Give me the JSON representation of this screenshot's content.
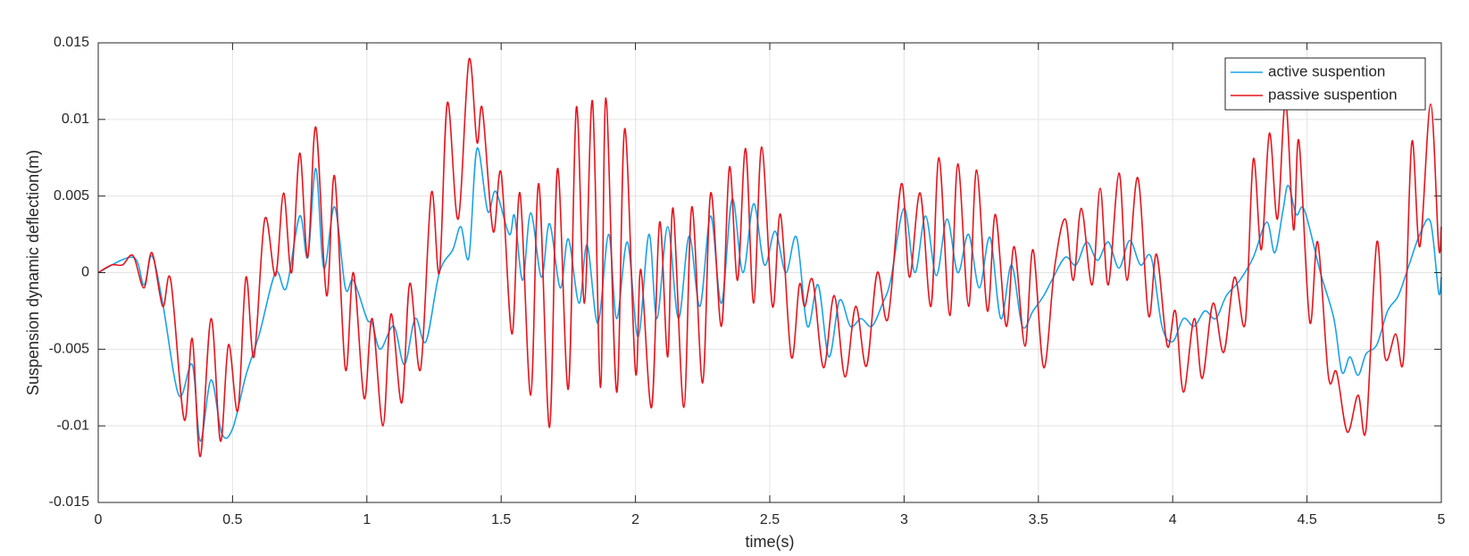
{
  "chart_data": {
    "type": "line",
    "xlabel": "time(s)",
    "ylabel": "Suspension dynamic deflection(m)",
    "xlim": [
      0,
      5
    ],
    "xticks": [
      0,
      0.5,
      1,
      1.5,
      2,
      2.5,
      3,
      3.5,
      4,
      4.5,
      5
    ],
    "ylim": [
      -0.015,
      0.015
    ],
    "yticks": [
      -0.015,
      -0.01,
      -0.005,
      0,
      0.005,
      0.01,
      0.015
    ],
    "grid": true,
    "legend": "top-right",
    "series": [
      {
        "name": "active suspention",
        "color": "#1aa3e8",
        "x": [
          0,
          0.13,
          0.17,
          0.2,
          0.24,
          0.3,
          0.35,
          0.38,
          0.42,
          0.46,
          0.5,
          0.55,
          0.6,
          0.66,
          0.7,
          0.75,
          0.78,
          0.81,
          0.84,
          0.88,
          0.92,
          0.95,
          1.0,
          1.02,
          1.05,
          1.1,
          1.14,
          1.18,
          1.22,
          1.27,
          1.32,
          1.35,
          1.38,
          1.41,
          1.45,
          1.48,
          1.53,
          1.55,
          1.58,
          1.61,
          1.65,
          1.68,
          1.72,
          1.75,
          1.79,
          1.82,
          1.86,
          1.9,
          1.93,
          1.97,
          2.01,
          2.05,
          2.08,
          2.12,
          2.16,
          2.2,
          2.24,
          2.28,
          2.32,
          2.36,
          2.4,
          2.44,
          2.48,
          2.52,
          2.56,
          2.6,
          2.64,
          2.68,
          2.72,
          2.76,
          2.8,
          2.84,
          2.88,
          2.92,
          2.95,
          3.0,
          3.04,
          3.08,
          3.12,
          3.16,
          3.2,
          3.24,
          3.28,
          3.32,
          3.36,
          3.4,
          3.44,
          3.48,
          3.52,
          3.55,
          3.6,
          3.64,
          3.68,
          3.72,
          3.76,
          3.8,
          3.84,
          3.88,
          3.92,
          3.96,
          4.0,
          4.04,
          4.08,
          4.12,
          4.16,
          4.2,
          4.25,
          4.3,
          4.35,
          4.38,
          4.41,
          4.43,
          4.46,
          4.49,
          4.55,
          4.6,
          4.63,
          4.66,
          4.69,
          4.72,
          4.76,
          4.8,
          4.84,
          4.88,
          4.92,
          4.96,
          4.99,
          5
        ],
        "values": [
          0,
          0.001,
          -0.0008,
          0.0011,
          -0.002,
          -0.008,
          -0.006,
          -0.011,
          -0.007,
          -0.0105,
          -0.0102,
          -0.0067,
          -0.004,
          0,
          -0.001,
          0.0037,
          0.001,
          0.0068,
          0.0003,
          0.0043,
          -0.001,
          -0.0005,
          -0.003,
          -0.0033,
          -0.005,
          -0.0035,
          -0.006,
          -0.003,
          -0.0045,
          0,
          0.0015,
          0.003,
          0.001,
          0.0081,
          0.004,
          0.0053,
          0.0025,
          0.0037,
          -0.0005,
          0.0039,
          -0.0003,
          0.0032,
          -0.001,
          0.0022,
          -0.002,
          0.0018,
          -0.0033,
          0.0025,
          -0.003,
          0.002,
          -0.0042,
          0.0025,
          -0.003,
          0.003,
          -0.003,
          0.0024,
          -0.0022,
          0.0037,
          -0.002,
          0.0048,
          0,
          0.0045,
          0.0005,
          0.0027,
          0,
          0.0023,
          -0.0035,
          -0.0008,
          -0.0055,
          -0.0018,
          -0.0035,
          -0.003,
          -0.0035,
          -0.002,
          -0.0005,
          0.0042,
          0,
          0.0037,
          -0.0002,
          0.0035,
          0,
          0.0025,
          -0.001,
          0.0023,
          -0.003,
          0.0005,
          -0.0035,
          -0.0025,
          -0.0015,
          -0.0005,
          0.001,
          0.0005,
          0.002,
          0.0008,
          0.002,
          0.0003,
          0.0021,
          0.0005,
          0.001,
          -0.0035,
          -0.0045,
          -0.003,
          -0.0035,
          -0.0025,
          -0.003,
          -0.0015,
          -0.0005,
          0.001,
          0.0033,
          0.0013,
          0.004,
          0.0057,
          0.0038,
          0.0041,
          0,
          -0.003,
          -0.0065,
          -0.0055,
          -0.0067,
          -0.0053,
          -0.0047,
          -0.0025,
          -0.0015,
          0.0005,
          0.0025,
          0.0033,
          -0.0013,
          -0.0003
        ]
      },
      {
        "name": "passive suspention",
        "color": "#e8141c",
        "x": [
          0,
          0.05,
          0.09,
          0.13,
          0.17,
          0.2,
          0.24,
          0.27,
          0.32,
          0.35,
          0.38,
          0.42,
          0.455,
          0.485,
          0.52,
          0.55,
          0.58,
          0.62,
          0.66,
          0.69,
          0.72,
          0.75,
          0.78,
          0.81,
          0.85,
          0.88,
          0.92,
          0.95,
          0.99,
          1.02,
          1.06,
          1.09,
          1.13,
          1.16,
          1.2,
          1.24,
          1.27,
          1.3,
          1.34,
          1.38,
          1.41,
          1.43,
          1.47,
          1.5,
          1.54,
          1.57,
          1.61,
          1.64,
          1.68,
          1.71,
          1.75,
          1.78,
          1.81,
          1.84,
          1.87,
          1.89,
          1.93,
          1.96,
          2.0,
          2.02,
          2.06,
          2.09,
          2.12,
          2.14,
          2.18,
          2.21,
          2.25,
          2.28,
          2.32,
          2.35,
          2.38,
          2.41,
          2.44,
          2.47,
          2.51,
          2.54,
          2.58,
          2.61,
          2.63,
          2.66,
          2.7,
          2.74,
          2.78,
          2.82,
          2.86,
          2.9,
          2.94,
          2.99,
          3.02,
          3.06,
          3.1,
          3.13,
          3.17,
          3.2,
          3.24,
          3.27,
          3.31,
          3.34,
          3.38,
          3.41,
          3.45,
          3.48,
          3.52,
          3.56,
          3.6,
          3.63,
          3.66,
          3.7,
          3.73,
          3.76,
          3.8,
          3.83,
          3.87,
          3.91,
          3.94,
          3.98,
          4.01,
          4.04,
          4.08,
          4.11,
          4.15,
          4.19,
          4.23,
          4.27,
          4.3,
          4.33,
          4.36,
          4.39,
          4.42,
          4.45,
          4.47,
          4.51,
          4.54,
          4.58,
          4.61,
          4.65,
          4.69,
          4.72,
          4.76,
          4.79,
          4.83,
          4.86,
          4.89,
          4.92,
          4.96,
          4.99,
          5
        ],
        "values": [
          0,
          0.0005,
          0.0005,
          0.0011,
          -0.001,
          0.0013,
          -0.0022,
          -0.0005,
          -0.0096,
          -0.0043,
          -0.012,
          -0.003,
          -0.011,
          -0.0047,
          -0.009,
          -0.0003,
          -0.0055,
          0.0035,
          -0.0002,
          0.0052,
          0,
          0.0078,
          0.001,
          0.0095,
          -0.0015,
          0.0063,
          -0.0063,
          0,
          -0.0082,
          -0.003,
          -0.01,
          -0.0027,
          -0.0085,
          -0.0007,
          -0.0063,
          0.0052,
          0,
          0.0111,
          0.0035,
          0.0139,
          0.0085,
          0.0107,
          0.0027,
          0.0065,
          -0.004,
          0.0052,
          -0.008,
          0.0058,
          -0.0101,
          0.0068,
          -0.0076,
          0.0108,
          -0.002,
          0.0112,
          -0.0075,
          0.0114,
          -0.0078,
          0.0094,
          -0.0065,
          0.0002,
          -0.0088,
          0.0033,
          -0.0055,
          0.0042,
          -0.0088,
          0.0043,
          -0.0072,
          0.0052,
          -0.0035,
          0.0069,
          -0.0005,
          0.0081,
          -0.002,
          0.0082,
          -0.0022,
          0.0038,
          -0.0055,
          -0.0008,
          -0.0022,
          -0.0005,
          -0.0062,
          -0.0015,
          -0.0068,
          -0.0022,
          -0.0061,
          0,
          -0.003,
          0.0058,
          -0.0003,
          0.0052,
          -0.0022,
          0.0075,
          -0.0028,
          0.0071,
          -0.0022,
          0.0067,
          -0.0025,
          0.0038,
          -0.0035,
          0.0017,
          -0.0048,
          0.0015,
          -0.0062,
          0.0003,
          0.0035,
          -0.0005,
          0.0042,
          -0.0008,
          0.0055,
          -0.0008,
          0.0065,
          -0.0005,
          0.0062,
          -0.0028,
          0.0012,
          -0.0048,
          -0.0025,
          -0.0078,
          -0.003,
          -0.0069,
          -0.002,
          -0.0052,
          -0.0003,
          -0.0033,
          0.0074,
          0.0015,
          0.0091,
          0.0035,
          0.0112,
          0.0028,
          0.0086,
          -0.0032,
          0.002,
          -0.0068,
          -0.0065,
          -0.0104,
          -0.008,
          -0.0102,
          0.002,
          -0.0055,
          -0.004,
          -0.0055,
          0.0085,
          0.0017,
          0.011,
          0.0017,
          0.003
        ]
      }
    ]
  }
}
